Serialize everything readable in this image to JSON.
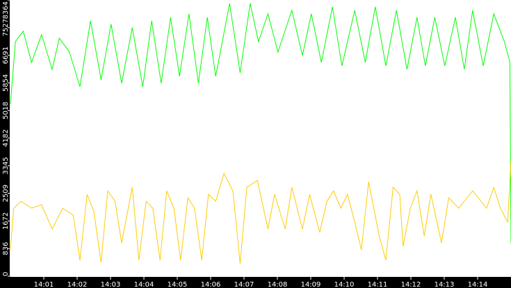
{
  "chart_data": {
    "type": "line",
    "title": "",
    "xlabel": "",
    "ylabel": "",
    "xlim": [
      "14:00:00",
      "14:15:00"
    ],
    "ylim": [
      0,
      8364
    ],
    "y_ticks": [
      "0",
      "836",
      "1672",
      "2509",
      "3345",
      "4182",
      "5018",
      "5854",
      "6691",
      "7527",
      "8364"
    ],
    "x_ticks": [
      "14:01",
      "14:02",
      "14:03",
      "14:04",
      "14:05",
      "14:06",
      "14:07",
      "14:08",
      "14:09",
      "14:10",
      "14:11",
      "14:12",
      "14:13",
      "14:14"
    ],
    "grid": false,
    "background": "#ffffff",
    "axis_background": "#000000",
    "series": [
      {
        "color": "#00ff00",
        "points": [
          [
            "14:00:00",
            5213
          ],
          [
            "14:00:09",
            7105
          ],
          [
            "14:00:23",
            7420
          ],
          [
            "14:00:38",
            6474
          ],
          [
            "14:00:56",
            7315
          ],
          [
            "14:01:15",
            6264
          ],
          [
            "14:01:28",
            7210
          ],
          [
            "14:01:46",
            6790
          ],
          [
            "14:02:05",
            5738
          ],
          [
            "14:02:24",
            7735
          ],
          [
            "14:02:43",
            5949
          ],
          [
            "14:03:01",
            7630
          ],
          [
            "14:03:20",
            5844
          ],
          [
            "14:03:39",
            7525
          ],
          [
            "14:03:58",
            5738
          ],
          [
            "14:04:14",
            7735
          ],
          [
            "14:04:31",
            5844
          ],
          [
            "14:04:48",
            7840
          ],
          [
            "14:05:04",
            6054
          ],
          [
            "14:05:21",
            7946
          ],
          [
            "14:05:38",
            5844
          ],
          [
            "14:05:54",
            7840
          ],
          [
            "14:06:09",
            6054
          ],
          [
            "14:06:21",
            7105
          ],
          [
            "14:06:34",
            8261
          ],
          [
            "14:06:53",
            6159
          ],
          [
            "14:07:11",
            8261
          ],
          [
            "14:07:26",
            7105
          ],
          [
            "14:07:43",
            7946
          ],
          [
            "14:08:01",
            6790
          ],
          [
            "14:08:26",
            8051
          ],
          [
            "14:08:45",
            6684
          ],
          [
            "14:09:01",
            7946
          ],
          [
            "14:09:19",
            6474
          ],
          [
            "14:09:39",
            8156
          ],
          [
            "14:09:56",
            6369
          ],
          [
            "14:10:19",
            8051
          ],
          [
            "14:10:38",
            6474
          ],
          [
            "14:10:56",
            8156
          ],
          [
            "14:11:15",
            6369
          ],
          [
            "14:11:34",
            8051
          ],
          [
            "14:11:53",
            6264
          ],
          [
            "14:12:11",
            7840
          ],
          [
            "14:12:26",
            6369
          ],
          [
            "14:12:43",
            7840
          ],
          [
            "14:13:01",
            6369
          ],
          [
            "14:13:20",
            7840
          ],
          [
            "14:13:36",
            6264
          ],
          [
            "14:13:51",
            8051
          ],
          [
            "14:14:10",
            6369
          ],
          [
            "14:14:29",
            7946
          ],
          [
            "14:14:48",
            7105
          ],
          [
            "14:14:58",
            6474
          ],
          [
            "14:15:00",
            1000
          ]
        ]
      },
      {
        "color": "#ffcc00",
        "points": [
          [
            "14:00:00",
            799
          ],
          [
            "14:00:06",
            2060
          ],
          [
            "14:00:19",
            2270
          ],
          [
            "14:00:38",
            2060
          ],
          [
            "14:00:56",
            2165
          ],
          [
            "14:01:15",
            1429
          ],
          [
            "14:01:34",
            2060
          ],
          [
            "14:01:53",
            1850
          ],
          [
            "14:02:05",
            483
          ],
          [
            "14:02:18",
            2480
          ],
          [
            "14:02:30",
            1955
          ],
          [
            "14:02:43",
            420
          ],
          [
            "14:02:55",
            2585
          ],
          [
            "14:03:08",
            2270
          ],
          [
            "14:03:20",
            1009
          ],
          [
            "14:03:39",
            2691
          ],
          [
            "14:03:51",
            483
          ],
          [
            "14:04:04",
            2270
          ],
          [
            "14:04:16",
            2060
          ],
          [
            "14:04:29",
            483
          ],
          [
            "14:04:41",
            2585
          ],
          [
            "14:04:54",
            2060
          ],
          [
            "14:05:06",
            483
          ],
          [
            "14:05:19",
            2375
          ],
          [
            "14:05:31",
            2060
          ],
          [
            "14:05:44",
            483
          ],
          [
            "14:05:56",
            2480
          ],
          [
            "14:06:09",
            2270
          ],
          [
            "14:06:24",
            3111
          ],
          [
            "14:06:40",
            2585
          ],
          [
            "14:06:53",
            378
          ],
          [
            "14:07:05",
            2691
          ],
          [
            "14:07:24",
            2901
          ],
          [
            "14:07:43",
            1429
          ],
          [
            "14:07:55",
            2480
          ],
          [
            "14:08:14",
            1429
          ],
          [
            "14:08:26",
            2691
          ],
          [
            "14:08:45",
            1429
          ],
          [
            "14:08:58",
            2480
          ],
          [
            "14:09:16",
            1324
          ],
          [
            "14:09:29",
            2270
          ],
          [
            "14:09:41",
            2585
          ],
          [
            "14:09:54",
            2060
          ],
          [
            "14:10:06",
            2480
          ],
          [
            "14:10:19",
            1640
          ],
          [
            "14:10:31",
            799
          ],
          [
            "14:10:44",
            2859
          ],
          [
            "14:11:03",
            1219
          ],
          [
            "14:11:15",
            483
          ],
          [
            "14:11:28",
            2691
          ],
          [
            "14:11:40",
            2480
          ],
          [
            "14:11:46",
            904
          ],
          [
            "14:11:59",
            2060
          ],
          [
            "14:12:11",
            2585
          ],
          [
            "14:12:24",
            1219
          ],
          [
            "14:12:36",
            2480
          ],
          [
            "14:12:55",
            1009
          ],
          [
            "14:13:08",
            2375
          ],
          [
            "14:13:26",
            2060
          ],
          [
            "14:13:51",
            2585
          ],
          [
            "14:14:16",
            2060
          ],
          [
            "14:14:29",
            2691
          ],
          [
            "14:14:41",
            2060
          ],
          [
            "14:14:54",
            1640
          ],
          [
            "14:15:00",
            3500
          ]
        ]
      }
    ]
  }
}
